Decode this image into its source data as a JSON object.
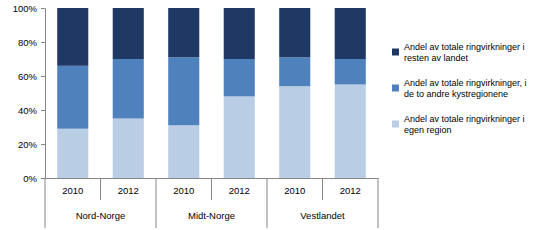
{
  "chart_data": {
    "type": "bar",
    "stacked": true,
    "grid": false,
    "legend": "right",
    "categories": [
      "2010",
      "2012",
      "2010",
      "2012",
      "2010",
      "2012"
    ],
    "category_groups": [
      "Nord-Norge",
      "Midt-Norge",
      "Vestlandet"
    ],
    "ylim": [
      0,
      100
    ],
    "yticks": [
      {
        "value": 0,
        "label": "0%"
      },
      {
        "value": 20,
        "label": "20%"
      },
      {
        "value": 40,
        "label": "40%"
      },
      {
        "value": 60,
        "label": "60%"
      },
      {
        "value": 80,
        "label": "80%"
      },
      {
        "value": 100,
        "label": "100%"
      }
    ],
    "series": [
      {
        "name": "Andel av totale ringvirkninger i egen region",
        "color": "#b9cde5",
        "values": [
          29,
          35,
          31,
          48,
          54,
          55
        ]
      },
      {
        "name": "Andel av totale ringvirkninger, i de to andre kystregionene",
        "color": "#4f81bd",
        "values": [
          37,
          35,
          40,
          22,
          17,
          15
        ]
      },
      {
        "name": "Andel av totale ringvirkninger i resten av landet",
        "color": "#1f3864",
        "values": [
          34,
          30,
          29,
          30,
          29,
          30
        ]
      }
    ]
  }
}
